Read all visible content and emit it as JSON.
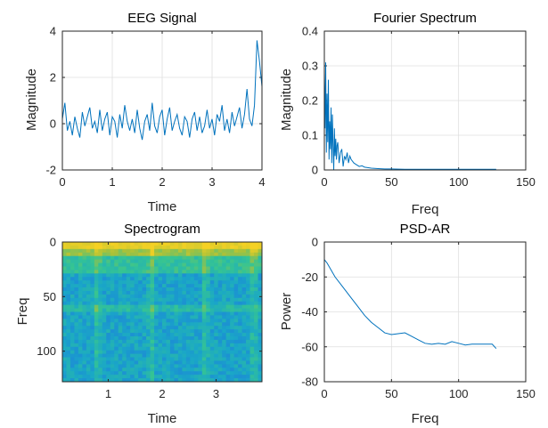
{
  "chart_data": [
    {
      "id": "eeg",
      "type": "line",
      "title": "EEG Signal",
      "xlabel": "Time",
      "ylabel": "Magnitude",
      "xlim": [
        0,
        4
      ],
      "ylim": [
        -2,
        4
      ],
      "xticks": [
        0,
        1,
        2,
        3,
        4
      ],
      "xticklabels": [
        "0",
        "1",
        "2",
        "3",
        "4"
      ],
      "yticks": [
        -2,
        0,
        2,
        4
      ],
      "yticklabels": [
        "-2",
        "0",
        "2",
        "4"
      ],
      "grid": true,
      "color": "#0072bd",
      "series": [
        {
          "x": [
            0,
            0.05,
            0.1,
            0.15,
            0.2,
            0.25,
            0.3,
            0.35,
            0.4,
            0.45,
            0.5,
            0.55,
            0.6,
            0.65,
            0.7,
            0.75,
            0.8,
            0.85,
            0.9,
            0.95,
            1,
            1.05,
            1.1,
            1.15,
            1.2,
            1.25,
            1.3,
            1.35,
            1.4,
            1.45,
            1.5,
            1.55,
            1.6,
            1.65,
            1.7,
            1.75,
            1.8,
            1.85,
            1.9,
            1.95,
            2,
            2.05,
            2.1,
            2.15,
            2.2,
            2.25,
            2.3,
            2.35,
            2.4,
            2.45,
            2.5,
            2.55,
            2.6,
            2.65,
            2.7,
            2.75,
            2.8,
            2.85,
            2.9,
            2.95,
            3,
            3.05,
            3.1,
            3.15,
            3.2,
            3.25,
            3.3,
            3.35,
            3.4,
            3.45,
            3.5,
            3.55,
            3.6,
            3.65,
            3.7,
            3.75,
            3.8,
            3.85,
            3.9,
            3.95,
            4
          ],
          "y": [
            0.2,
            0.9,
            -0.3,
            0.1,
            -0.5,
            0.3,
            -0.2,
            -0.6,
            0.5,
            -0.1,
            0.3,
            0.7,
            -0.2,
            0.1,
            -0.4,
            0.6,
            -0.3,
            0.2,
            0.5,
            -0.5,
            0.3,
            0.1,
            -0.6,
            0.4,
            -0.2,
            0.8,
            0.1,
            -0.3,
            0.2,
            -0.4,
            0.6,
            -0.2,
            -0.7,
            0.1,
            0.4,
            -0.3,
            0.9,
            -0.1,
            -0.4,
            0.3,
            0.6,
            -0.5,
            0.2,
            0.7,
            -0.3,
            0.1,
            0.4,
            -0.2,
            -0.5,
            0.3,
            0.1,
            -0.6,
            0.2,
            0.5,
            -0.3,
            0.3,
            -0.4,
            -0.1,
            0.6,
            -0.2,
            0.2,
            -0.5,
            0.4,
            0.1,
            0.8,
            -0.3,
            0.2,
            -0.4,
            0.5,
            -0.1,
            0.3,
            0.7,
            -0.2,
            0.4,
            1.5,
            0.2,
            -0.1,
            0.8,
            3.6,
            2.7,
            1.6
          ]
        }
      ]
    },
    {
      "id": "fft",
      "type": "line",
      "title": "Fourier Spectrum",
      "xlabel": "Freq",
      "ylabel": "Magnitude",
      "xlim": [
        0,
        150
      ],
      "ylim": [
        0,
        0.4
      ],
      "xticks": [
        0,
        50,
        100,
        150
      ],
      "xticklabels": [
        "0",
        "50",
        "100",
        "150"
      ],
      "yticks": [
        0,
        0.1,
        0.2,
        0.3,
        0.4
      ],
      "yticklabels": [
        "0",
        "0.1",
        "0.2",
        "0.3",
        "0.4"
      ],
      "grid": true,
      "color": "#0072bd",
      "series": [
        {
          "x": [
            0,
            0.5,
            1,
            1.5,
            2,
            2.5,
            3,
            3.5,
            4,
            4.5,
            5,
            5.5,
            6,
            6.5,
            7,
            7.5,
            8,
            8.5,
            9,
            9.5,
            10,
            11,
            12,
            13,
            14,
            15,
            16,
            17,
            18,
            19,
            20,
            22,
            24,
            26,
            28,
            30,
            35,
            40,
            45,
            50,
            60,
            70,
            80,
            90,
            100,
            110,
            120,
            128
          ],
          "y": [
            0.28,
            0.12,
            0.31,
            0.05,
            0.22,
            0.08,
            0.26,
            0.03,
            0.14,
            0.06,
            0.18,
            0.02,
            0.16,
            0.07,
            0.0,
            0.12,
            0.04,
            0.09,
            0.03,
            0.07,
            0.08,
            0.02,
            0.05,
            0.06,
            0.01,
            0.04,
            0.03,
            0.05,
            0.02,
            0.04,
            0.03,
            0.02,
            0.015,
            0.01,
            0.012,
            0.008,
            0.005,
            0.004,
            0.003,
            0.003,
            0.002,
            0.002,
            0.002,
            0.002,
            0.002,
            0.002,
            0.002,
            0.002
          ]
        }
      ]
    },
    {
      "id": "spectrogram",
      "type": "heatmap",
      "title": "Spectrogram",
      "xlabel": "Time",
      "ylabel": "Freq",
      "xlim": [
        0.15,
        3.85
      ],
      "ylim": [
        0,
        128
      ],
      "y_reversed": true,
      "xticks": [
        1,
        2,
        3
      ],
      "xticklabels": [
        "1",
        "2",
        "3"
      ],
      "yticks": [
        0,
        50,
        100
      ],
      "yticklabels": [
        "0",
        "50",
        "100"
      ],
      "colormap": [
        "#3e26a8",
        "#1f6fe4",
        "#1aa7c7",
        "#35c493",
        "#a9c13a",
        "#f5d123"
      ],
      "description_levels": "bright yellow near 0 Hz, cyan/blue above, with lighter vertical stripes at about t=0.8, 1.8 and 2.8 and a horizontal line near 60 Hz"
    },
    {
      "id": "psd",
      "type": "line",
      "title": "PSD-AR",
      "xlabel": "Freq",
      "ylabel": "Power",
      "xlim": [
        0,
        150
      ],
      "ylim": [
        -80,
        0
      ],
      "xticks": [
        0,
        50,
        100,
        150
      ],
      "xticklabels": [
        "0",
        "50",
        "100",
        "150"
      ],
      "yticks": [
        -80,
        -60,
        -40,
        -20,
        0
      ],
      "yticklabels": [
        "-80",
        "-60",
        "-40",
        "-20",
        "0"
      ],
      "grid": true,
      "color": "#0072bd",
      "series": [
        {
          "x": [
            0,
            2,
            5,
            8,
            12,
            16,
            20,
            25,
            30,
            35,
            40,
            45,
            50,
            55,
            60,
            65,
            70,
            75,
            80,
            85,
            90,
            95,
            100,
            105,
            110,
            115,
            120,
            125,
            128
          ],
          "y": [
            -10,
            -12,
            -16,
            -20,
            -24,
            -28,
            -32,
            -37,
            -42,
            -46,
            -49,
            -52,
            -53,
            -52.5,
            -52,
            -54,
            -56,
            -58,
            -58.5,
            -58,
            -58.5,
            -57,
            -58,
            -59,
            -58.5,
            -58.5,
            -58.5,
            -58.5,
            -61
          ]
        }
      ]
    }
  ]
}
